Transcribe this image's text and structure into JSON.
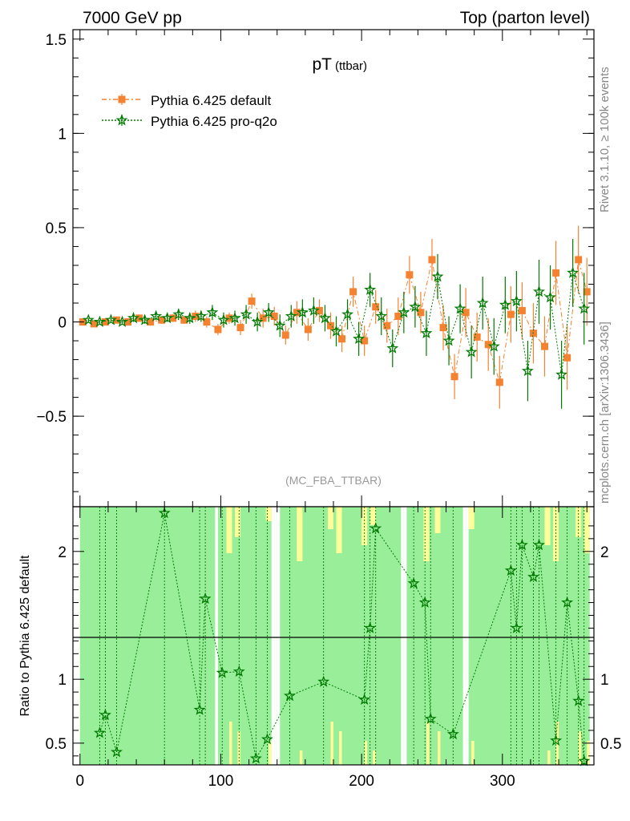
{
  "header": {
    "left": "7000 GeV pp",
    "right": "Top (parton level)"
  },
  "side_labels": {
    "rivet": "Rivet 3.1.10, ≥ 100k events",
    "mcplots": "mcplots.cern.ch [arXiv:1306.3436]"
  },
  "colors": {
    "default_series": "#f58231",
    "proq2o_series": "#007a00",
    "band_green": "#99ee99",
    "band_yellow": "#ffff99"
  },
  "chart_data": [
    {
      "type": "scatter",
      "title": "pT",
      "title_sub": "(ttbar)",
      "watermark": "(MC_FBA_TTBAR)",
      "xlabel": "",
      "ylabel": "",
      "xlim": [
        -5,
        365
      ],
      "ylim": [
        -0.98,
        1.55
      ],
      "yticks": [
        -0.5,
        0,
        0.5,
        1,
        1.5
      ],
      "ytick_labels": [
        "−0.5",
        "0",
        "0.5",
        "1",
        "1.5"
      ],
      "legend_position": "top-left",
      "series": [
        {
          "name": "Pythia 6.425 default",
          "marker": "square",
          "x": [
            2,
            10,
            18,
            26,
            34,
            42,
            50,
            58,
            66,
            74,
            82,
            90,
            98,
            106,
            114,
            122,
            130,
            138,
            146,
            154,
            162,
            170,
            178,
            186,
            194,
            202,
            210,
            218,
            226,
            234,
            242,
            250,
            258,
            266,
            274,
            282,
            290,
            298,
            306,
            314,
            322,
            330,
            338,
            346,
            354,
            360
          ],
          "y": [
            0.0,
            -0.01,
            0.0,
            0.01,
            0.0,
            0.02,
            0.0,
            0.01,
            0.02,
            0.01,
            0.03,
            0.0,
            -0.04,
            0.02,
            -0.03,
            0.11,
            0.02,
            0.03,
            -0.07,
            0.05,
            -0.04,
            0.06,
            -0.02,
            -0.09,
            0.16,
            -0.1,
            0.08,
            -0.02,
            0.03,
            0.25,
            0.05,
            0.33,
            -0.03,
            -0.29,
            0.05,
            -0.08,
            -0.12,
            -0.32,
            0.04,
            0.06,
            -0.06,
            -0.13,
            0.26,
            -0.19,
            0.33,
            0.16
          ],
          "err": [
            0.01,
            0.01,
            0.01,
            0.01,
            0.01,
            0.02,
            0.02,
            0.02,
            0.02,
            0.02,
            0.03,
            0.03,
            0.03,
            0.03,
            0.04,
            0.04,
            0.05,
            0.05,
            0.05,
            0.06,
            0.06,
            0.06,
            0.07,
            0.07,
            0.08,
            0.08,
            0.09,
            0.09,
            0.1,
            0.1,
            0.11,
            0.11,
            0.12,
            0.12,
            0.13,
            0.13,
            0.14,
            0.14,
            0.15,
            0.15,
            0.16,
            0.16,
            0.17,
            0.17,
            0.18,
            0.18
          ]
        },
        {
          "name": "Pythia 6.425 pro-q2o",
          "marker": "star",
          "x": [
            6,
            14,
            22,
            30,
            38,
            46,
            54,
            62,
            70,
            78,
            86,
            94,
            102,
            110,
            118,
            126,
            134,
            142,
            150,
            158,
            166,
            174,
            182,
            190,
            198,
            206,
            214,
            222,
            230,
            238,
            246,
            254,
            262,
            270,
            278,
            286,
            294,
            302,
            310,
            318,
            326,
            334,
            342,
            350,
            358
          ],
          "y": [
            0.01,
            0.0,
            0.01,
            0.0,
            0.02,
            0.01,
            0.03,
            0.02,
            0.04,
            0.02,
            0.03,
            0.05,
            0.01,
            0.02,
            0.04,
            0.0,
            0.05,
            -0.02,
            0.03,
            0.05,
            0.06,
            0.02,
            -0.05,
            0.04,
            -0.09,
            0.17,
            0.03,
            -0.14,
            0.05,
            0.08,
            -0.06,
            0.24,
            -0.1,
            0.07,
            -0.16,
            0.1,
            -0.13,
            0.09,
            0.11,
            -0.26,
            0.16,
            0.13,
            -0.28,
            0.26,
            0.07
          ],
          "err": [
            0.01,
            0.01,
            0.01,
            0.01,
            0.02,
            0.02,
            0.02,
            0.02,
            0.03,
            0.03,
            0.03,
            0.04,
            0.04,
            0.04,
            0.05,
            0.05,
            0.05,
            0.06,
            0.06,
            0.07,
            0.07,
            0.07,
            0.08,
            0.08,
            0.09,
            0.09,
            0.1,
            0.1,
            0.11,
            0.11,
            0.12,
            0.12,
            0.13,
            0.13,
            0.14,
            0.14,
            0.15,
            0.15,
            0.16,
            0.16,
            0.17,
            0.17,
            0.18,
            0.18,
            0.19
          ]
        }
      ]
    },
    {
      "type": "scatter",
      "title": "",
      "xlabel": "",
      "ylabel": "Ratio to Pythia 6.425 default",
      "xlim": [
        -5,
        365
      ],
      "ylim": [
        0.33,
        2.35
      ],
      "xticks": [
        0,
        100,
        200,
        300
      ],
      "yticks": [
        0.5,
        1,
        2
      ],
      "reference_line": 1,
      "series": [
        {
          "name": "Pythia 6.425 pro-q2o",
          "marker": "star",
          "x": [
            14,
            18,
            26,
            60,
            85,
            89,
            101,
            113,
            125,
            133,
            149,
            173,
            202,
            206,
            210,
            237,
            245,
            249,
            265,
            306,
            310,
            314,
            322,
            326,
            338,
            346,
            354,
            358
          ],
          "y": [
            0.58,
            0.72,
            0.43,
            2.3,
            0.76,
            1.63,
            1.05,
            1.06,
            0.38,
            0.53,
            0.87,
            0.98,
            0.84,
            1.4,
            2.18,
            1.75,
            1.6,
            0.69,
            0.57,
            1.85,
            1.4,
            2.05,
            1.8,
            2.05,
            0.52,
            1.6,
            0.83,
            0.36
          ]
        }
      ]
    }
  ]
}
